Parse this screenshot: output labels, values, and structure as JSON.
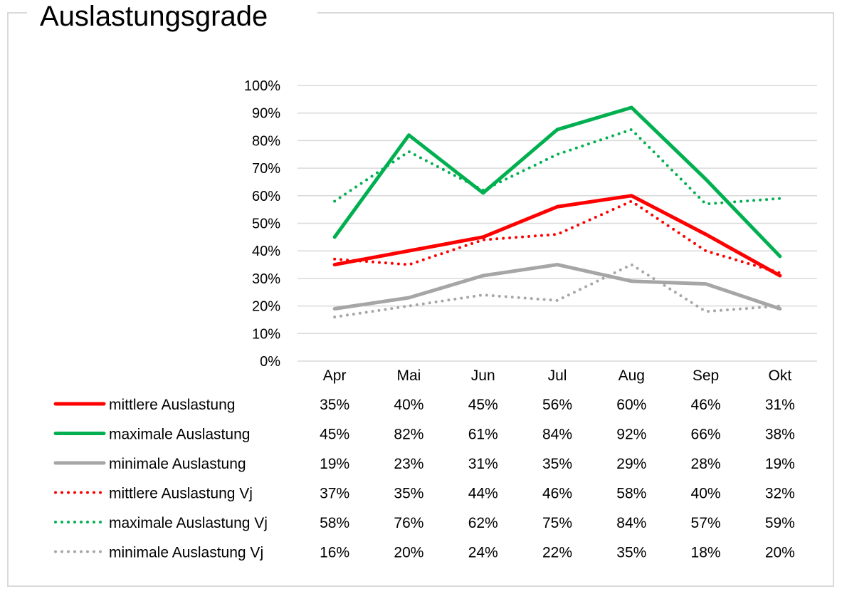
{
  "chart_data": {
    "type": "line",
    "title": "Auslastungsgrade",
    "xlabel": "",
    "ylabel": "",
    "ylim": [
      0,
      100
    ],
    "y_tick_labels": [
      "0%",
      "10%",
      "20%",
      "30%",
      "40%",
      "50%",
      "60%",
      "70%",
      "80%",
      "90%",
      "100%"
    ],
    "categories": [
      "Apr",
      "Mai",
      "Jun",
      "Jul",
      "Aug",
      "Sep",
      "Okt"
    ],
    "grid": true,
    "legend_placement": "bottom (data table)",
    "series": [
      {
        "name": "mittlere Auslastung",
        "color": "#ff0000",
        "style": "solid",
        "values": [
          35,
          40,
          45,
          56,
          60,
          46,
          31
        ],
        "labels": [
          "35%",
          "40%",
          "45%",
          "56%",
          "60%",
          "46%",
          "31%"
        ]
      },
      {
        "name": "maximale Auslastung",
        "color": "#00b050",
        "style": "solid",
        "values": [
          45,
          82,
          61,
          84,
          92,
          66,
          38
        ],
        "labels": [
          "45%",
          "82%",
          "61%",
          "84%",
          "92%",
          "66%",
          "38%"
        ]
      },
      {
        "name": "minimale Auslastung",
        "color": "#a6a6a6",
        "style": "solid",
        "values": [
          19,
          23,
          31,
          35,
          29,
          28,
          19
        ],
        "labels": [
          "19%",
          "23%",
          "31%",
          "35%",
          "29%",
          "28%",
          "19%"
        ]
      },
      {
        "name": "mittlere Auslastung Vj",
        "color": "#ff0000",
        "style": "dotted",
        "values": [
          37,
          35,
          44,
          46,
          58,
          40,
          32
        ],
        "labels": [
          "37%",
          "35%",
          "44%",
          "46%",
          "58%",
          "40%",
          "32%"
        ]
      },
      {
        "name": "maximale Auslastung Vj",
        "color": "#00b050",
        "style": "dotted",
        "values": [
          58,
          76,
          62,
          75,
          84,
          57,
          59
        ],
        "labels": [
          "58%",
          "76%",
          "62%",
          "75%",
          "84%",
          "57%",
          "59%"
        ]
      },
      {
        "name": "minimale Auslastung Vj",
        "color": "#a6a6a6",
        "style": "dotted",
        "values": [
          16,
          20,
          24,
          22,
          35,
          18,
          20
        ],
        "labels": [
          "16%",
          "20%",
          "24%",
          "22%",
          "35%",
          "18%",
          "20%"
        ]
      }
    ]
  }
}
